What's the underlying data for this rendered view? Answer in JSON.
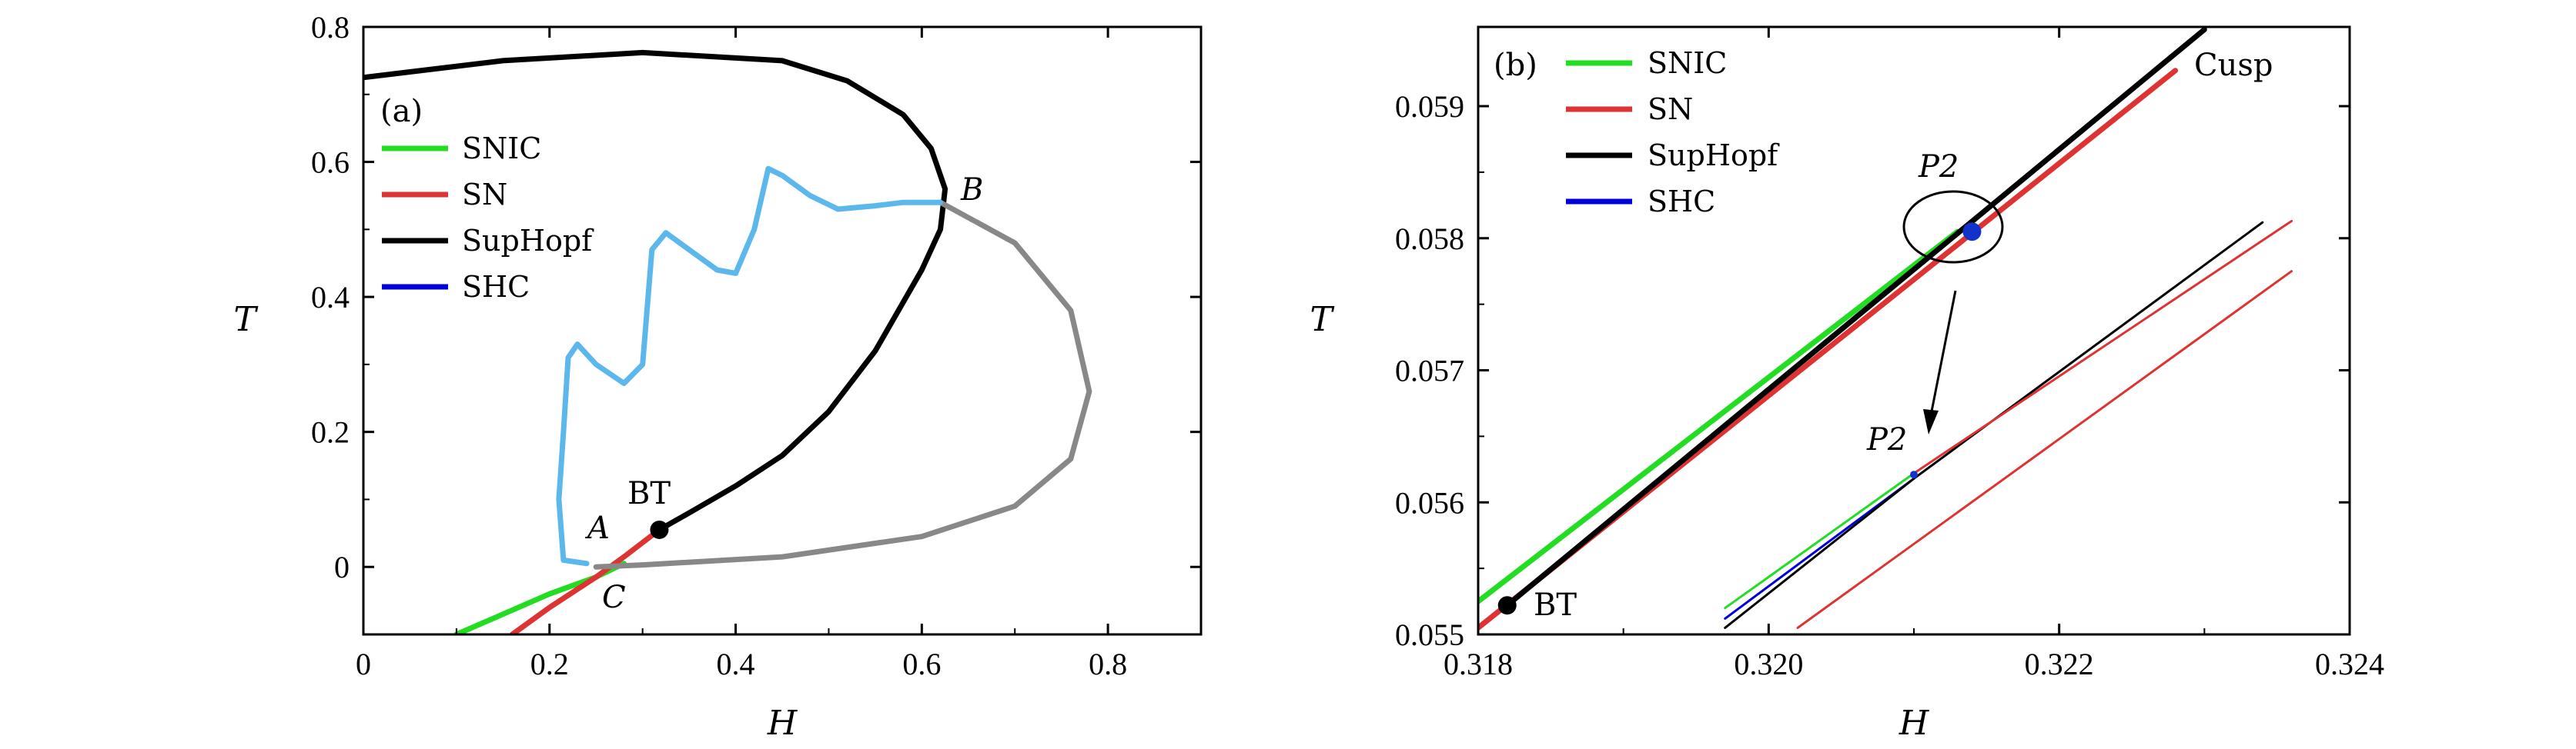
{
  "chart_data": [
    {
      "type": "line",
      "panel_label": "(a)",
      "xlabel": "H",
      "ylabel": "T",
      "xlim": [
        0,
        0.9
      ],
      "ylim": [
        -0.1,
        0.8
      ],
      "xticks": [
        "0",
        "0.2",
        "0.4",
        "0.6",
        "0.8"
      ],
      "yticks": [
        "0",
        "0.2",
        "0.4",
        "0.6",
        "0.8"
      ],
      "legend_position": "left",
      "legend": [
        "SNIC",
        "SN",
        "SupHopf",
        "SHC"
      ],
      "annotations": {
        "BT": "BT",
        "A": "A",
        "B": "B",
        "C": "C"
      },
      "series": [
        {
          "name": "SNIC",
          "color": "#22dd22",
          "points": [
            [
              0.1,
              -0.1
            ],
            [
              0.15,
              -0.07
            ],
            [
              0.2,
              -0.04
            ],
            [
              0.25,
              -0.015
            ],
            [
              0.28,
              0.005
            ]
          ]
        },
        {
          "name": "SN",
          "color": "#dd3333",
          "points": [
            [
              0.16,
              -0.1
            ],
            [
              0.2,
              -0.06
            ],
            [
              0.25,
              -0.015
            ],
            [
              0.28,
              0.015
            ],
            [
              0.318,
              0.055
            ]
          ]
        },
        {
          "name": "SupHopf",
          "color": "#000000",
          "points": [
            [
              0.318,
              0.055
            ],
            [
              0.35,
              0.08
            ],
            [
              0.4,
              0.12
            ],
            [
              0.45,
              0.165
            ],
            [
              0.5,
              0.23
            ],
            [
              0.55,
              0.32
            ],
            [
              0.6,
              0.44
            ],
            [
              0.62,
              0.5
            ],
            [
              0.625,
              0.56
            ],
            [
              0.61,
              0.62
            ],
            [
              0.58,
              0.67
            ],
            [
              0.52,
              0.72
            ],
            [
              0.45,
              0.75
            ],
            [
              0.3,
              0.762
            ],
            [
              0.15,
              0.75
            ],
            [
              0.0,
              0.725
            ]
          ]
        },
        {
          "name": "SupHopf continuation",
          "color": "#888888",
          "points": [
            [
              0.62,
              0.54
            ],
            [
              0.7,
              0.48
            ],
            [
              0.76,
              0.38
            ],
            [
              0.78,
              0.26
            ],
            [
              0.76,
              0.16
            ],
            [
              0.7,
              0.09
            ],
            [
              0.6,
              0.045
            ],
            [
              0.45,
              0.015
            ],
            [
              0.3,
              0.003
            ],
            [
              0.25,
              0.0
            ]
          ]
        },
        {
          "name": "Homoclinic branch",
          "color": "#5bb7ec",
          "points": [
            [
              0.24,
              0.005
            ],
            [
              0.215,
              0.01
            ],
            [
              0.21,
              0.1
            ],
            [
              0.215,
              0.2
            ],
            [
              0.22,
              0.31
            ],
            [
              0.23,
              0.33
            ],
            [
              0.25,
              0.3
            ],
            [
              0.28,
              0.272
            ],
            [
              0.3,
              0.3
            ],
            [
              0.31,
              0.47
            ],
            [
              0.325,
              0.495
            ],
            [
              0.35,
              0.47
            ],
            [
              0.38,
              0.44
            ],
            [
              0.4,
              0.435
            ],
            [
              0.42,
              0.5
            ],
            [
              0.435,
              0.59
            ],
            [
              0.45,
              0.58
            ],
            [
              0.48,
              0.55
            ],
            [
              0.51,
              0.53
            ],
            [
              0.55,
              0.535
            ],
            [
              0.58,
              0.54
            ],
            [
              0.62,
              0.54
            ]
          ]
        }
      ],
      "points": [
        {
          "label": "BT",
          "x": 0.318,
          "y": 0.055,
          "color": "#000000"
        }
      ]
    },
    {
      "type": "line",
      "panel_label": "(b)",
      "xlabel": "H",
      "ylabel": "T",
      "xlim": [
        0.318,
        0.324
      ],
      "ylim": [
        0.055,
        0.0596
      ],
      "xticks": [
        "0.318",
        "0.320",
        "0.322",
        "0.324"
      ],
      "yticks": [
        "0.055",
        "0.056",
        "0.057",
        "0.058",
        "0.059"
      ],
      "legend_position": "top-left",
      "legend": [
        "SNIC",
        "SN",
        "SupHopf",
        "SHC"
      ],
      "annotations": {
        "cusp": "Cusp",
        "BT": "BT",
        "P2_main": "P2",
        "P2_inset": "P2"
      },
      "series": [
        {
          "name": "SNIC",
          "color": "#22dd22",
          "points": [
            [
              0.318,
              0.05525
            ],
            [
              0.3213,
              0.05805
            ]
          ]
        },
        {
          "name": "SN",
          "color": "#dd3333",
          "points": [
            [
              0.318,
              0.05505
            ],
            [
              0.3228,
              0.05927
            ]
          ]
        },
        {
          "name": "SupHopf",
          "color": "#000000",
          "points": [
            [
              0.3182,
              0.05522
            ],
            [
              0.323,
              0.05958
            ]
          ]
        },
        {
          "name": "Inset SNIC",
          "color": "#22dd22",
          "points": [
            [
              0.3197,
              0.0552
            ],
            [
              0.321,
              0.05622
            ]
          ]
        },
        {
          "name": "Inset SHC",
          "color": "#0000dd",
          "points": [
            [
              0.3197,
              0.05512
            ],
            [
              0.321,
              0.05618
            ]
          ]
        },
        {
          "name": "Inset SupHopf",
          "color": "#000000",
          "points": [
            [
              0.3197,
              0.05505
            ],
            [
              0.321,
              0.05618
            ],
            [
              0.3234,
              0.05812
            ]
          ]
        },
        {
          "name": "Inset SN upper",
          "color": "#dd3333",
          "points": [
            [
              0.321,
              0.05622
            ],
            [
              0.3236,
              0.05813
            ]
          ]
        },
        {
          "name": "Inset SN lower",
          "color": "#dd3333",
          "points": [
            [
              0.3202,
              0.05505
            ],
            [
              0.3236,
              0.05775
            ]
          ]
        }
      ],
      "points": [
        {
          "label": "BT",
          "x": 0.3182,
          "y": 0.05522,
          "color": "#000000"
        },
        {
          "label": "P2",
          "x": 0.3214,
          "y": 0.05805,
          "color": "#1133cc"
        },
        {
          "label": "P2 inset",
          "x": 0.321,
          "y": 0.05621,
          "color": "#1133cc"
        }
      ]
    }
  ]
}
